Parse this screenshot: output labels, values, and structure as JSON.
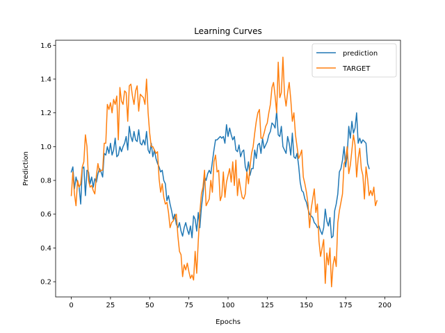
{
  "chart_data": {
    "type": "line",
    "title": "Learning Curves",
    "xlabel": "Epochs",
    "ylabel": "Prediction",
    "xlim": [
      -10,
      210
    ],
    "ylim": [
      0.11,
      1.63
    ],
    "xticks": [
      0,
      25,
      50,
      75,
      100,
      125,
      150,
      175,
      200
    ],
    "yticks": [
      0.2,
      0.4,
      0.6,
      0.8,
      1.0,
      1.2,
      1.4,
      1.6
    ],
    "grid": false,
    "legend_position": "top-right",
    "x_start": 0,
    "x_step": 1,
    "series": [
      {
        "name": "prediction",
        "color": "#1f77b4",
        "values": [
          0.85,
          0.88,
          0.75,
          0.82,
          0.78,
          0.76,
          0.66,
          0.87,
          0.88,
          0.71,
          0.86,
          0.85,
          0.78,
          0.82,
          0.76,
          0.81,
          0.79,
          0.84,
          0.87,
          0.85,
          0.82,
          0.96,
          0.95,
          1.0,
          0.96,
          1.02,
          0.95,
          0.98,
          1.05,
          0.94,
          0.95,
          1.0,
          0.97,
          1.0,
          1.02,
          1.06,
          0.98,
          1.12,
          1.06,
          1.03,
          1.09,
          1.04,
          1.03,
          1.1,
          1.02,
          1.01,
          1.04,
          1.01,
          1.09,
          0.98,
          0.96,
          1.02,
          0.94,
          0.98,
          0.93,
          0.9,
          0.88,
          0.85,
          0.86,
          0.8,
          0.78,
          0.68,
          0.71,
          0.66,
          0.62,
          0.57,
          0.6,
          0.54,
          0.52,
          0.55,
          0.5,
          0.47,
          0.52,
          0.55,
          0.51,
          0.48,
          0.53,
          0.46,
          0.59,
          0.57,
          0.5,
          0.61,
          0.52,
          0.64,
          0.72,
          0.82,
          0.8,
          0.84,
          0.86,
          0.84,
          0.91,
          0.98,
          1.04,
          1.04,
          1.05,
          1.06,
          1.05,
          1.06,
          1.02,
          1.13,
          1.06,
          1.11,
          1.07,
          1.04,
          1.06,
          0.98,
          0.97,
          1.01,
          0.94,
          0.97,
          0.98,
          0.88,
          0.85,
          0.91,
          0.83,
          0.87,
          0.87,
          0.98,
          0.93,
          1.01,
          1.02,
          0.96,
          1.05,
          0.99,
          1.01,
          1.03,
          1.07,
          1.09,
          1.14,
          1.13,
          1.11,
          1.21,
          1.07,
          1.06,
          1.12,
          1.0,
          0.98,
          0.96,
          1.06,
          1.02,
          0.95,
          1.08,
          0.94,
          0.93,
          0.96,
          0.89,
          0.79,
          0.74,
          0.73,
          0.69,
          0.67,
          0.63,
          0.6,
          0.59,
          0.58,
          0.55,
          0.54,
          0.52,
          0.53,
          0.5,
          0.48,
          0.52,
          0.63,
          0.56,
          0.53,
          0.58,
          0.46,
          0.47,
          0.62,
          0.66,
          0.72,
          0.85,
          0.87,
          0.92,
          1.0,
          0.88,
          0.95,
          1.12,
          1.05,
          1.15,
          1.08,
          1.11,
          1.2,
          1.02,
          1.05,
          1.02,
          1.04,
          1.03,
          1.02,
          0.9,
          0.87
        ]
      },
      {
        "name": "TARGET",
        "color": "#ff7f0e",
        "values": [
          0.71,
          0.85,
          0.72,
          0.65,
          0.8,
          0.76,
          0.78,
          0.88,
          0.91,
          1.07,
          1.0,
          0.8,
          0.76,
          0.77,
          0.74,
          0.72,
          0.83,
          0.9,
          0.85,
          0.86,
          0.86,
          1.02,
          1.02,
          1.25,
          1.22,
          1.26,
          1.2,
          1.28,
          1.25,
          1.3,
          1.04,
          1.35,
          1.27,
          1.25,
          1.33,
          1.32,
          1.15,
          1.36,
          1.37,
          1.3,
          1.25,
          1.33,
          1.36,
          1.21,
          1.31,
          1.3,
          1.29,
          1.25,
          1.4,
          1.2,
          1.08,
          1.0,
          1.0,
          0.98,
          0.96,
          0.97,
          0.81,
          0.73,
          0.78,
          0.7,
          0.66,
          0.67,
          0.61,
          0.52,
          0.55,
          0.56,
          0.58,
          0.6,
          0.47,
          0.38,
          0.36,
          0.23,
          0.3,
          0.27,
          0.31,
          0.26,
          0.22,
          0.24,
          0.21,
          0.38,
          0.25,
          0.44,
          0.61,
          0.72,
          0.76,
          0.86,
          0.65,
          0.67,
          0.69,
          0.8,
          0.73,
          0.91,
          0.95,
          0.85,
          0.86,
          0.68,
          0.71,
          0.85,
          0.7,
          0.79,
          0.83,
          0.87,
          0.79,
          0.91,
          0.77,
          0.92,
          0.71,
          0.81,
          0.75,
          0.7,
          0.69,
          0.72,
          0.85,
          0.78,
          0.88,
          0.96,
          1.0,
          1.08,
          1.15,
          1.2,
          1.22,
          1.05,
          1.05,
          1.08,
          1.12,
          1.14,
          1.2,
          1.25,
          1.35,
          1.38,
          1.3,
          1.2,
          1.5,
          1.29,
          1.32,
          1.53,
          1.31,
          1.24,
          1.32,
          1.38,
          1.28,
          1.15,
          1.2,
          1.07,
          1.0,
          0.93,
          0.95,
          0.98,
          0.82,
          0.78,
          0.73,
          0.66,
          0.52,
          0.63,
          0.69,
          0.75,
          0.61,
          0.66,
          0.44,
          0.35,
          0.4,
          0.45,
          0.19,
          0.37,
          0.3,
          0.4,
          0.17,
          0.3,
          0.35,
          0.29,
          0.55,
          0.62,
          0.67,
          0.72,
          0.9,
          0.92,
          1.0,
          0.84,
          0.89,
          0.98,
          1.07,
          1.01,
          0.82,
          0.93,
          0.99,
          0.87,
          0.83,
          0.69,
          0.88,
          0.81,
          0.71,
          0.74,
          0.71,
          0.76,
          0.65,
          0.68
        ]
      }
    ]
  }
}
